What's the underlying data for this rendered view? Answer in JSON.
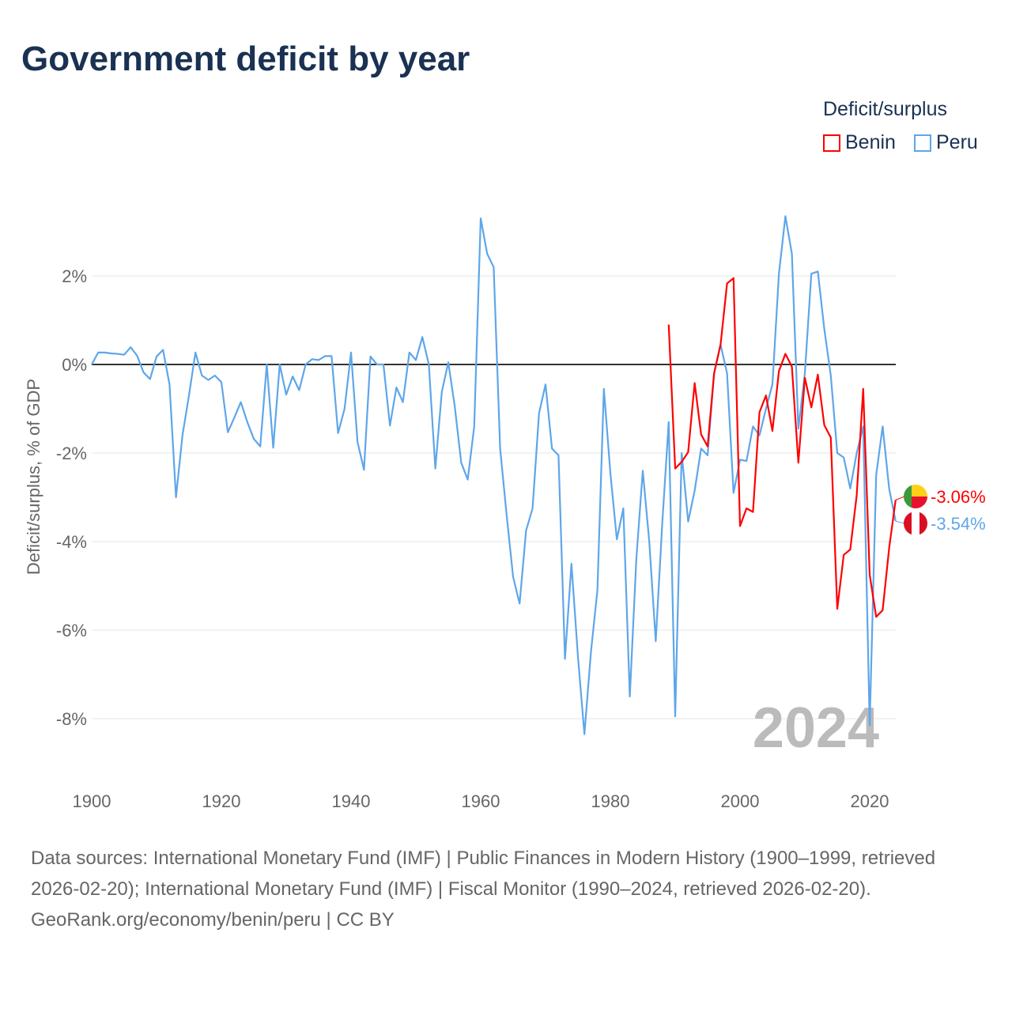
{
  "title": "Government deficit by year",
  "legend": {
    "title": "Deficit/surplus",
    "items": [
      {
        "label": "Benin",
        "color": "#ff0000"
      },
      {
        "label": "Peru",
        "color": "#5ea6ea"
      }
    ]
  },
  "footer": {
    "sources": "Data sources: International Monetary Fund (IMF) | Public Finances in Modern History (1900–1999, retrieved 2026-02-20); International Monetary Fund (IMF) | Fiscal Monitor (1990–2024, retrieved 2026-02-20).",
    "credit": "GeoRank.org/economy/benin/peru | CC BY"
  },
  "chart_data": {
    "type": "line",
    "title": "Government deficit by year",
    "xlabel": "",
    "ylabel": "Deficit/surplus, % of GDP",
    "xlim": [
      1900,
      2024
    ],
    "ylim": [
      -9.2,
      3.8
    ],
    "xticks": [
      1900,
      1920,
      1940,
      1960,
      1980,
      2000,
      2020
    ],
    "yticks": [
      {
        "v": 2,
        "label": "2%"
      },
      {
        "v": 0,
        "label": "0%"
      },
      {
        "v": -2,
        "label": "-2%"
      },
      {
        "v": -4,
        "label": "-4%"
      },
      {
        "v": -6,
        "label": "-6%"
      },
      {
        "v": -8,
        "label": "-8%"
      }
    ],
    "watermark_year": "2024",
    "series": [
      {
        "name": "Peru",
        "color": "#5ea6ea",
        "start": 1900,
        "end_label": "-3.54%",
        "values": [
          0,
          0.27,
          0.27,
          0.25,
          0.24,
          0.22,
          0.39,
          0.2,
          -0.18,
          -0.33,
          0.18,
          0.33,
          -0.45,
          -3.0,
          -1.6,
          -0.7,
          0.27,
          -0.25,
          -0.35,
          -0.25,
          -0.4,
          -1.53,
          -1.2,
          -0.85,
          -1.3,
          -1.68,
          -1.85,
          0,
          -1.88,
          0,
          -0.68,
          -0.27,
          -0.58,
          0,
          0.12,
          0.1,
          0.19,
          0.19,
          -1.55,
          -1.0,
          0.27,
          -1.75,
          -2.38,
          0.18,
          0,
          0,
          -1.38,
          -0.52,
          -0.85,
          0.27,
          0.1,
          0.62,
          0,
          -2.35,
          -0.62,
          0.05,
          -0.95,
          -2.22,
          -2.6,
          -1.4,
          3.3,
          2.5,
          2.2,
          -1.9,
          -3.4,
          -4.8,
          -5.4,
          -3.75,
          -3.25,
          -1.1,
          -0.45,
          -1.9,
          -2.05,
          -6.65,
          -4.5,
          -6.6,
          -8.35,
          -6.5,
          -5.1,
          -0.55,
          -2.45,
          -3.95,
          -3.25,
          -7.5,
          -4.4,
          -2.4,
          -4.0,
          -6.25,
          -3.6,
          -1.3,
          -7.95,
          -2.0,
          -3.55,
          -2.85,
          -1.9,
          -2.05,
          -0.2,
          0.45,
          -0.2,
          -2.9,
          -2.15,
          -2.18,
          -1.4,
          -1.6,
          -1.0,
          -0.45,
          2.05,
          3.35,
          2.5,
          -1.45,
          -0.2,
          2.05,
          2.1,
          0.8,
          -0.25,
          -2.0,
          -2.1,
          -2.8,
          -2.0,
          -1.4,
          -8.15,
          -2.5,
          -1.4,
          -2.8,
          -3.54
        ]
      },
      {
        "name": "Benin",
        "color": "#ff0000",
        "start": 1989,
        "end_label": "-3.06%",
        "values": [
          0.9,
          -2.35,
          -2.2,
          -1.98,
          -0.42,
          -1.58,
          -1.85,
          -0.2,
          0.45,
          1.83,
          1.95,
          -3.65,
          -3.25,
          -3.33,
          -1.08,
          -0.7,
          -1.5,
          -0.15,
          0.24,
          -0.05,
          -2.22,
          -0.3,
          -0.97,
          -0.23,
          -1.37,
          -1.65,
          -5.52,
          -4.3,
          -4.18,
          -2.95,
          -0.55,
          -4.75,
          -5.7,
          -5.55,
          -4.15,
          -3.06
        ]
      }
    ]
  }
}
